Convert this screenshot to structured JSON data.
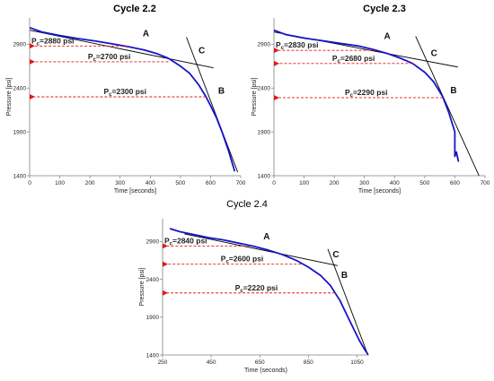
{
  "colors": {
    "curve": "#1515c8",
    "tangent": "#000000",
    "arrow": "#e01818",
    "axis": "#7f7f7f",
    "plot_bg": "#ffffff"
  },
  "chart_data": [
    {
      "type": "line",
      "title": "Cycle 2.2",
      "xlabel": "Time [seconds]",
      "ylabel": "Pressure [psi]",
      "xlim": [
        0,
        700
      ],
      "ylim": [
        1400,
        3200
      ],
      "xticks": [
        "0",
        "100",
        "200",
        "300",
        "400",
        "500",
        "600",
        "700"
      ],
      "yticks": [
        "1400",
        "1900",
        "2400",
        "2900"
      ],
      "grid": false,
      "series": [
        {
          "x": [
            0,
            40,
            100,
            160,
            220,
            280,
            330,
            380,
            420,
            460,
            500,
            530,
            560,
            585,
            600,
            620,
            640,
            660,
            680
          ],
          "y": [
            3090,
            3040,
            3000,
            2965,
            2935,
            2900,
            2870,
            2835,
            2795,
            2740,
            2650,
            2570,
            2440,
            2300,
            2200,
            2060,
            1880,
            1680,
            1450
          ]
        }
      ],
      "tangents": [
        {
          "x": [
            0,
            610
          ],
          "y": [
            3060,
            2630
          ]
        },
        {
          "x": [
            520,
            690
          ],
          "y": [
            2980,
            1440
          ]
        }
      ],
      "annotations": [
        {
          "text": "Pc=2880 psi",
          "y": 2880,
          "x_start": 0,
          "x_end": 325
        },
        {
          "text": "Pc=2700 psi",
          "y": 2700,
          "x_start": 0,
          "x_end": 460
        },
        {
          "text": "Pc=2300 psi",
          "y": 2300,
          "x_start": 0,
          "x_end": 585
        }
      ],
      "labels": [
        {
          "text": "A",
          "x": 375,
          "y": 2990
        },
        {
          "text": "C",
          "x": 560,
          "y": 2795
        },
        {
          "text": "B",
          "x": 625,
          "y": 2335
        }
      ]
    },
    {
      "type": "line",
      "title": "Cycle 2.3",
      "xlabel": "Time [seconds]",
      "ylabel": "Pressure [psi]",
      "xlim": [
        0,
        700
      ],
      "ylim": [
        1400,
        3200
      ],
      "xticks": [
        "0",
        "100",
        "200",
        "300",
        "400",
        "500",
        "600",
        "700"
      ],
      "yticks": [
        "1400",
        "1900",
        "2400",
        "2900"
      ],
      "grid": false,
      "series": [
        {
          "x": [
            0,
            40,
            100,
            160,
            220,
            280,
            330,
            380,
            420,
            460,
            500,
            530,
            560,
            580,
            600,
            600,
            605,
            612
          ],
          "y": [
            3060,
            3010,
            2970,
            2940,
            2910,
            2880,
            2840,
            2790,
            2740,
            2680,
            2580,
            2470,
            2300,
            2120,
            1900,
            1620,
            1670,
            1560
          ]
        }
      ],
      "tangents": [
        {
          "x": [
            0,
            610
          ],
          "y": [
            3040,
            2640
          ]
        },
        {
          "x": [
            470,
            680
          ],
          "y": [
            2990,
            1400
          ]
        }
      ],
      "annotations": [
        {
          "text": "Pc=2830 psi",
          "y": 2830,
          "x_start": 0,
          "x_end": 335
        },
        {
          "text": "Pc=2680 psi",
          "y": 2680,
          "x_start": 0,
          "x_end": 460
        },
        {
          "text": "Pc=2290 psi",
          "y": 2290,
          "x_start": 0,
          "x_end": 560
        }
      ],
      "labels": [
        {
          "text": "A",
          "x": 365,
          "y": 2960
        },
        {
          "text": "C",
          "x": 520,
          "y": 2765
        },
        {
          "text": "B",
          "x": 585,
          "y": 2340
        }
      ]
    },
    {
      "type": "line",
      "title": "Cycle 2.4",
      "xlabel": "Time (seconds)",
      "ylabel": "Pressure [psi]",
      "xlim": [
        250,
        1100
      ],
      "ylim": [
        1400,
        3200
      ],
      "xticks": [
        "250",
        "450",
        "650",
        "850",
        "1050"
      ],
      "yticks": [
        "1400",
        "1900",
        "2400",
        "2900"
      ],
      "grid": false,
      "series": [
        {
          "x": [
            280,
            320,
            380,
            440,
            500,
            560,
            620,
            680,
            740,
            800,
            850,
            900,
            940,
            980,
            1010,
            1040,
            1060,
            1080,
            1095
          ],
          "y": [
            3070,
            3030,
            2990,
            2950,
            2920,
            2880,
            2840,
            2790,
            2730,
            2650,
            2560,
            2450,
            2320,
            2120,
            1920,
            1720,
            1590,
            1480,
            1410
          ]
        }
      ],
      "tangents": [
        {
          "x": [
            340,
            970
          ],
          "y": [
            3000,
            2580
          ]
        },
        {
          "x": [
            930,
            1095
          ],
          "y": [
            2800,
            1400
          ]
        }
      ],
      "annotations": [
        {
          "text": "Pc=2840 psi",
          "y": 2840,
          "x_start": 250,
          "x_end": 610
        },
        {
          "text": "Pc=2600 psi",
          "y": 2600,
          "x_start": 250,
          "x_end": 820
        },
        {
          "text": "Pc=2220 psi",
          "y": 2220,
          "x_start": 250,
          "x_end": 960
        }
      ],
      "labels": [
        {
          "text": "A",
          "x": 665,
          "y": 2925
        },
        {
          "text": "C",
          "x": 950,
          "y": 2690
        },
        {
          "text": "B",
          "x": 985,
          "y": 2420
        }
      ]
    }
  ]
}
